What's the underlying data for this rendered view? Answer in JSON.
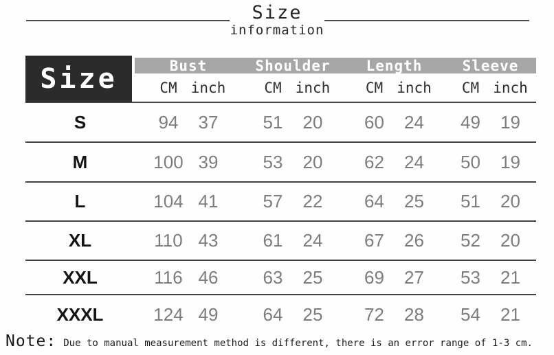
{
  "title": {
    "word": "Size",
    "subword": "information"
  },
  "chart_data": {
    "type": "table",
    "title": "Size information",
    "corner_header": "Size",
    "groups": [
      "Bust",
      "Shoulder",
      "Length",
      "Sleeve"
    ],
    "unit_labels": [
      "CM",
      "inch"
    ],
    "rows": [
      {
        "size": "S",
        "values": [
          94,
          37,
          51,
          20,
          60,
          24,
          49,
          19
        ]
      },
      {
        "size": "M",
        "values": [
          100,
          39,
          53,
          20,
          62,
          24,
          50,
          19
        ]
      },
      {
        "size": "L",
        "values": [
          104,
          41,
          57,
          22,
          64,
          25,
          51,
          20
        ]
      },
      {
        "size": "XL",
        "values": [
          110,
          43,
          61,
          24,
          67,
          26,
          52,
          20
        ]
      },
      {
        "size": "XXL",
        "values": [
          116,
          46,
          63,
          25,
          69,
          27,
          53,
          21
        ]
      },
      {
        "size": "XXXL",
        "values": [
          124,
          49,
          64,
          25,
          72,
          28,
          54,
          21
        ]
      }
    ]
  },
  "note": {
    "label": "Note:",
    "text": "Due to manual measurement method is different, there is an error range of 1-3 cm."
  },
  "colors": {
    "corner_box": "#2b2b2b",
    "group_bar": "#a7a7a7",
    "row_line": "#404040",
    "value_text": "#7d7d7d"
  }
}
